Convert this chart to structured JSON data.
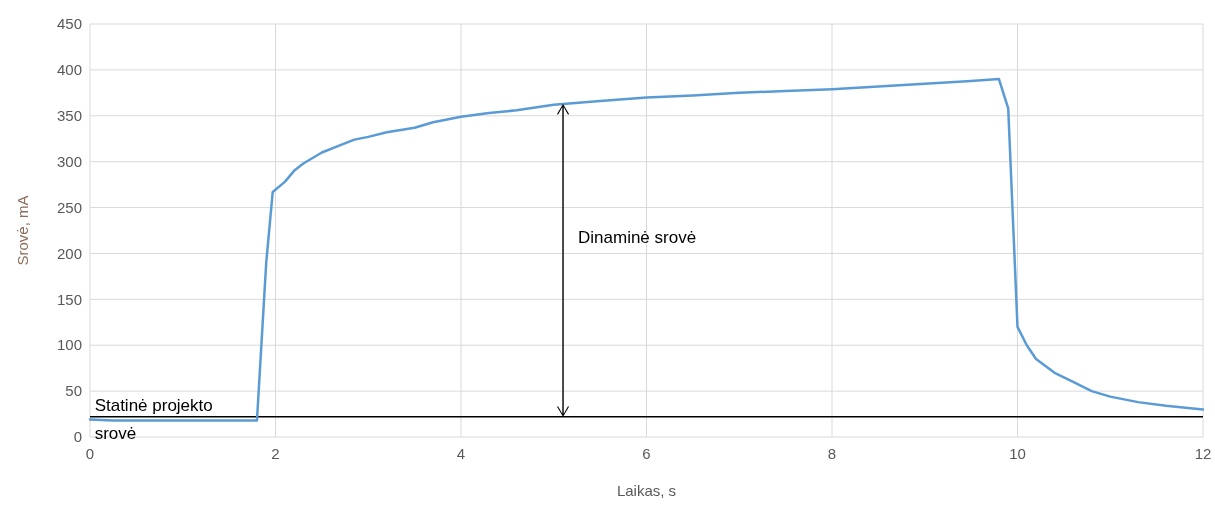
{
  "chart_data": {
    "type": "line",
    "xlabel": "Laikas, s",
    "ylabel": "Srovė, mA",
    "xlim": [
      0,
      12
    ],
    "xticks": [
      0,
      2,
      4,
      6,
      8,
      10,
      12
    ],
    "ylim": [
      0,
      450
    ],
    "yticks": [
      0,
      50,
      100,
      150,
      200,
      250,
      300,
      350,
      400,
      450
    ],
    "grid": true,
    "line_style": "solid",
    "marker": "none",
    "series": [
      {
        "color": "#5b9bd5",
        "x": [
          0,
          0.25,
          1.8,
          1.9,
          1.97,
          2.1,
          2.2,
          2.3,
          2.5,
          2.7,
          2.85,
          3.0,
          3.2,
          3.5,
          3.7,
          4.0,
          4.3,
          4.6,
          5.0,
          5.5,
          6,
          6.5,
          7,
          7.5,
          8,
          8.5,
          9,
          9.5,
          9.8,
          9.9,
          10.0,
          10.1,
          10.2,
          10.4,
          10.6,
          10.8,
          11.0,
          11.3,
          11.6,
          12
        ],
        "values": [
          19,
          18,
          18,
          190,
          267,
          278,
          290,
          298,
          310,
          318,
          324,
          327,
          332,
          337,
          343,
          349,
          353,
          356,
          362,
          366,
          370,
          372,
          375,
          377,
          379,
          382,
          385,
          388,
          390,
          358,
          120,
          100,
          85,
          70,
          60,
          50,
          44,
          38,
          34,
          30
        ]
      }
    ],
    "ref_lines": [
      {
        "axis": "y",
        "value": 22,
        "color": "#000000",
        "line_style": "solid"
      }
    ],
    "annotations": [
      {
        "text": "Statinė projekto srovė",
        "x": 0.05,
        "y": 22
      },
      "Dinaminė srovė"
    ]
  }
}
